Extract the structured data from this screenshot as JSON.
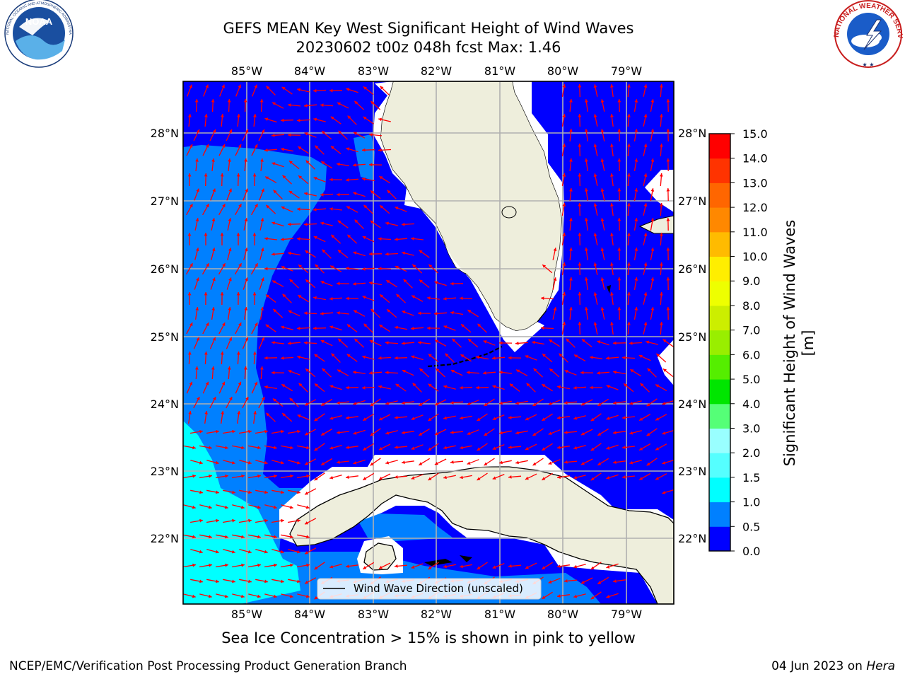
{
  "header": {
    "title_line1": "GEFS MEAN Key West Significant Height of Wind Waves",
    "title_line2": "20230602 t00z 048h fcst   Max: 1.46"
  },
  "logos": {
    "left": "NOAA",
    "left_ring": "NATIONAL OCEANIC AND ATMOSPHERIC ADMINISTRATION · U.S. DEPARTMENT OF COMMERCE",
    "right_ring": "NATIONAL WEATHER SERVICE"
  },
  "map": {
    "lon_ticks": [
      "85°W",
      "84°W",
      "83°W",
      "82°W",
      "81°W",
      "80°W",
      "79°W"
    ],
    "lat_ticks": [
      "28°N",
      "27°N",
      "26°N",
      "25°N",
      "24°N",
      "23°N",
      "22°N"
    ],
    "legend_label": "Wind Wave Direction (unscaled)",
    "colors": {
      "ocean_low": "#0000ff",
      "ocean_mid": "#0080ff",
      "ocean_high": "#00ffff",
      "land": "#eeeedc",
      "arrow": "#ff0000",
      "grid": "#b0b0b0"
    }
  },
  "colorbar": {
    "label": "Significant Height of Wind Waves [m]",
    "ticks": [
      "0.0",
      "0.5",
      "1.0",
      "1.5",
      "2.0",
      "3.0",
      "4.0",
      "5.0",
      "6.0",
      "7.0",
      "8.0",
      "9.0",
      "10.0",
      "11.0",
      "12.0",
      "13.0",
      "14.0",
      "15.0"
    ],
    "colors": [
      "#0000ff",
      "#0080ff",
      "#00ffff",
      "#55ffff",
      "#99ffff",
      "#55ff77",
      "#00e600",
      "#55ee00",
      "#99ee00",
      "#ccee00",
      "#eeff00",
      "#ffee00",
      "#ffbb00",
      "#ff8800",
      "#ff6600",
      "#ff3300",
      "#ff0000"
    ]
  },
  "notes": {
    "sea_ice": "Sea Ice Concentration > 15% is shown in pink to yellow",
    "branch": "NCEP/EMC/Verification Post Processing Product Generation Branch",
    "date": "04 Jun 2023 on",
    "host": "Hera"
  }
}
